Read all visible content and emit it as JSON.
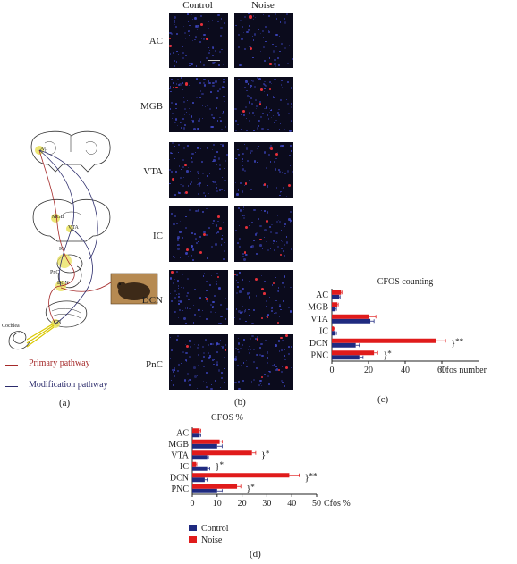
{
  "panel_labels": {
    "a": "(a)",
    "b": "(b)",
    "c": "(c)",
    "d": "(d)"
  },
  "diagram": {
    "brain_labels": [
      "AC",
      "MGB",
      "VTA",
      "IC",
      "PnC",
      "DCN",
      "CN",
      "Cochlea"
    ],
    "legend": [
      {
        "label": "Primary pathway",
        "color": "#a52a2a"
      },
      {
        "label": "Modification pathway",
        "color": "#2b2b6b"
      }
    ]
  },
  "micrographs": {
    "columns": [
      "Control",
      "Noise"
    ],
    "rows": [
      "AC",
      "MGB",
      "VTA",
      "IC",
      "DCN",
      "PnC"
    ]
  },
  "colors": {
    "control": "#1f2a80",
    "noise": "#e01b1b"
  },
  "chart_data": [
    {
      "type": "bar",
      "orientation": "horizontal",
      "title": "CFOS counting",
      "xlabel": "Cfos number",
      "categories": [
        "AC",
        "MGB",
        "VTA",
        "IC",
        "DCN",
        "PNC"
      ],
      "xlim": [
        0,
        80
      ],
      "xticks": [
        0,
        20,
        40,
        60
      ],
      "series": [
        {
          "name": "Control",
          "values": [
            4,
            2,
            21,
            2,
            13,
            15
          ],
          "errors": [
            0.5,
            0.5,
            2,
            0.5,
            2,
            2
          ]
        },
        {
          "name": "Noise",
          "values": [
            5,
            3,
            20,
            1,
            57,
            23
          ],
          "errors": [
            0.5,
            0.5,
            4,
            0.3,
            5,
            2
          ]
        }
      ],
      "significance": [
        {
          "category": "DCN",
          "label": "**"
        },
        {
          "category": "PNC",
          "label": "*"
        }
      ]
    },
    {
      "type": "bar",
      "orientation": "horizontal",
      "title": "CFOS %",
      "xlabel": "Cfos %",
      "categories": [
        "AC",
        "MGB",
        "VTA",
        "IC",
        "DCN",
        "PNC"
      ],
      "xlim": [
        0,
        50
      ],
      "xticks": [
        0,
        10,
        20,
        30,
        40,
        50
      ],
      "series": [
        {
          "name": "Control",
          "values": [
            3,
            10,
            6,
            6,
            5,
            10
          ],
          "errors": [
            0.4,
            2,
            0.5,
            1,
            1,
            2
          ]
        },
        {
          "name": "Noise",
          "values": [
            3,
            11,
            24,
            1.5,
            39,
            18
          ],
          "errors": [
            0.4,
            1,
            1.5,
            0.3,
            4,
            1.5
          ]
        }
      ],
      "significance": [
        {
          "category": "VTA",
          "label": "*"
        },
        {
          "category": "IC",
          "label": "*"
        },
        {
          "category": "DCN",
          "label": "**"
        },
        {
          "category": "PNC",
          "label": "*"
        }
      ],
      "legend": [
        "Control",
        "Noise"
      ],
      "legend_position": "bottom-left"
    }
  ]
}
